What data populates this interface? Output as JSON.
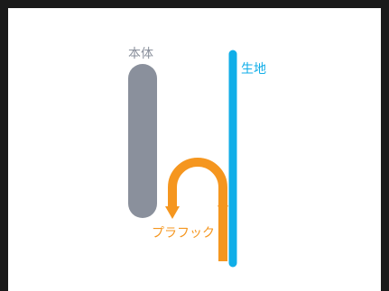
{
  "labels": {
    "body": "本体",
    "fabric": "生地",
    "plaflock": "プラフック"
  },
  "colors": {
    "border": "#1a1a1a",
    "body": "#8a909c",
    "fabric": "#10aee8",
    "plaflock": "#f5961f",
    "background": "#ffffff"
  }
}
